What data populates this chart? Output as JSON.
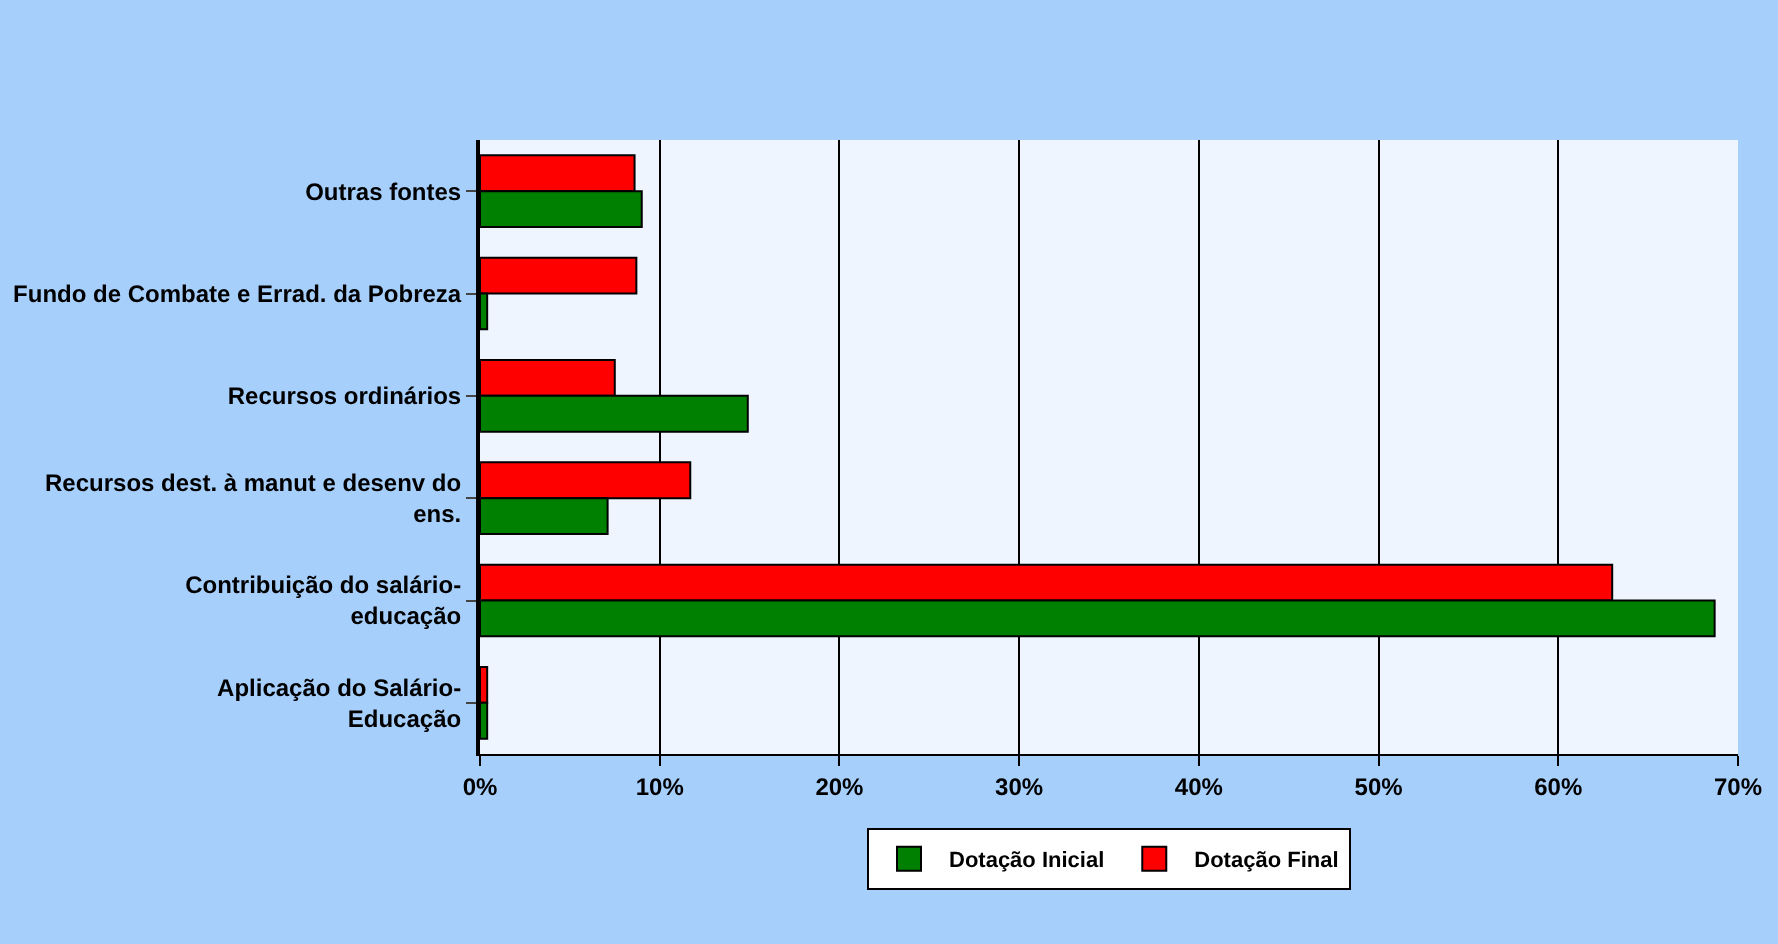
{
  "chart_data": {
    "type": "bar",
    "orientation": "horizontal",
    "categories": [
      "Outras fontes",
      "Fundo de Combate e Errad. da Pobreza",
      "Recursos ordinários",
      "Recursos dest. à manut e desenv do ens.",
      "Contribuição do salário-educação",
      "Aplicação do Salário-Educação"
    ],
    "series": [
      {
        "name": "Dotação Inicial",
        "color": "#008000",
        "values": [
          9.0,
          0.4,
          14.9,
          7.1,
          68.7,
          0.4
        ]
      },
      {
        "name": "Dotação Final",
        "color": "#ff0000",
        "values": [
          8.6,
          8.7,
          7.5,
          11.7,
          63.0,
          0.4
        ]
      }
    ],
    "xlim": [
      0,
      70
    ],
    "xticks": [
      {
        "value": 0,
        "label": "0%"
      },
      {
        "value": 10,
        "label": "10%"
      },
      {
        "value": 20,
        "label": "20%"
      },
      {
        "value": 30,
        "label": "30%"
      },
      {
        "value": 40,
        "label": "40%"
      },
      {
        "value": 50,
        "label": "50%"
      },
      {
        "value": 60,
        "label": "60%"
      },
      {
        "value": 70,
        "label": "70%"
      }
    ],
    "grid": "x",
    "legend": "bottom"
  }
}
